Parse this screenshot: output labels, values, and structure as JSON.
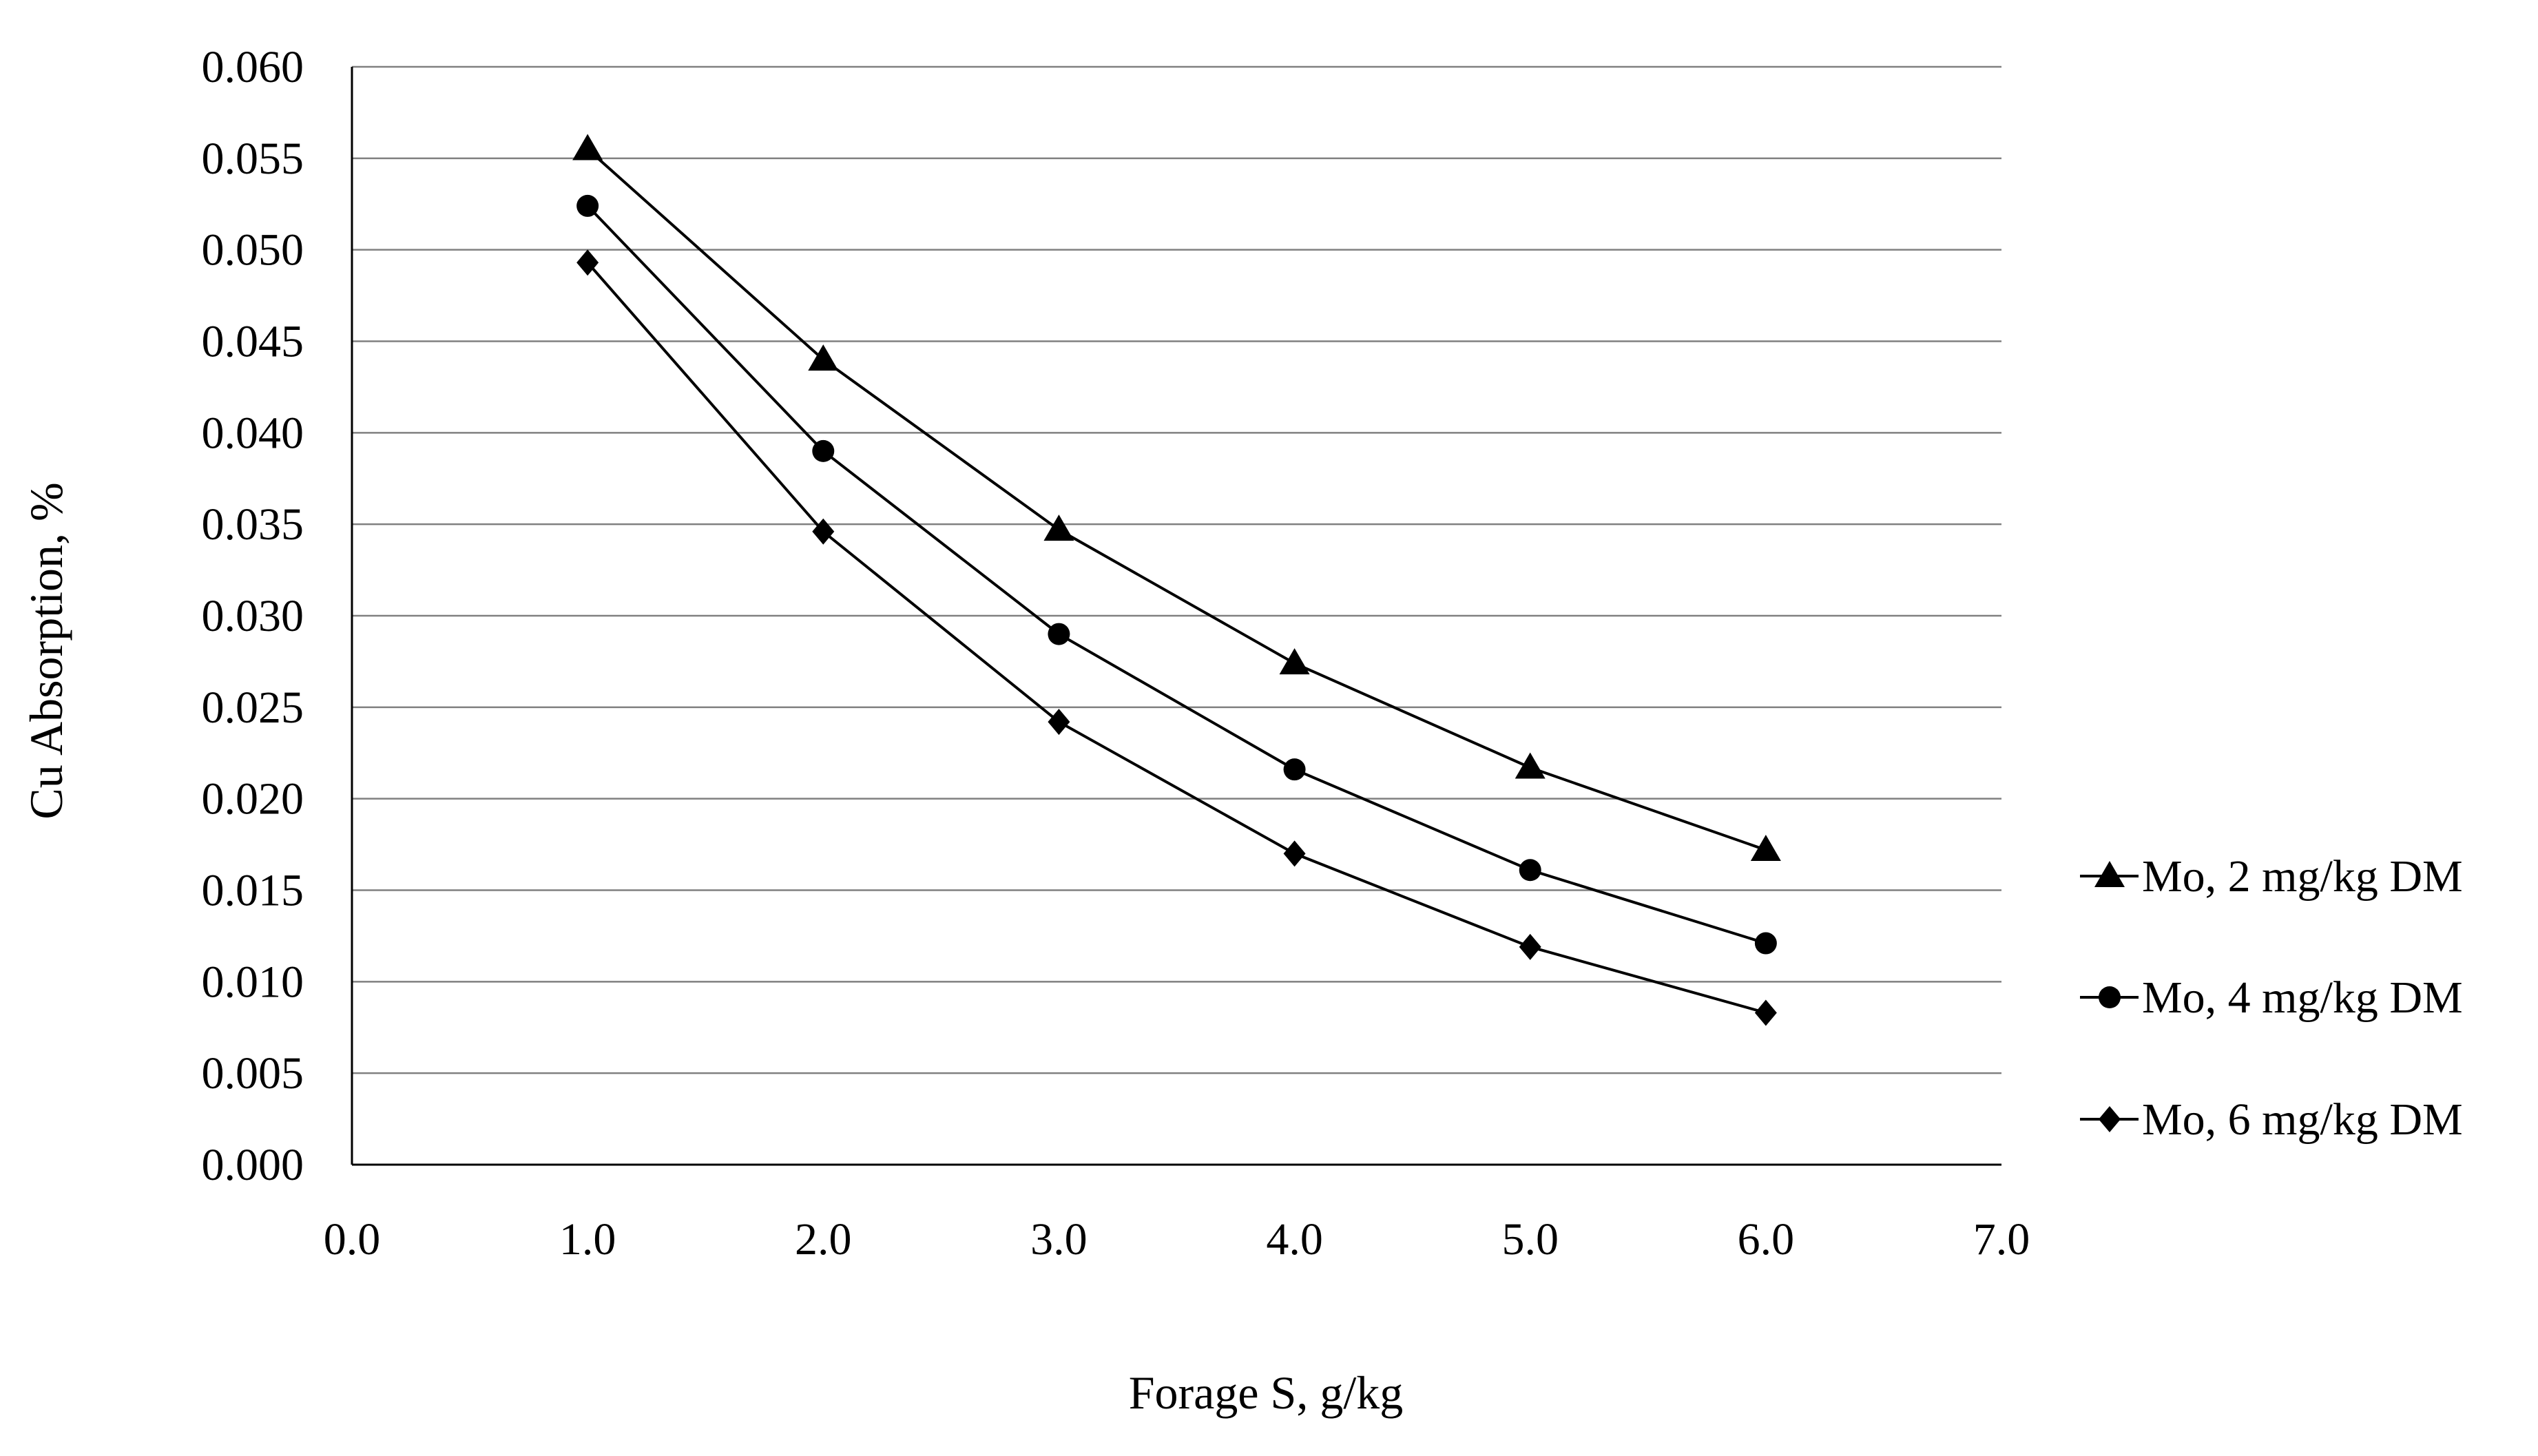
{
  "chart_data": {
    "type": "line",
    "title": "",
    "xlabel": "Forage S, g/kg",
    "ylabel": "Cu Absorption,  %",
    "xlim": [
      0,
      7
    ],
    "ylim": [
      0,
      0.06
    ],
    "x_ticks": [
      "0.0",
      "1.0",
      "2.0",
      "3.0",
      "4.0",
      "5.0",
      "6.0",
      "7.0"
    ],
    "y_ticks": [
      "0.000",
      "0.005",
      "0.010",
      "0.015",
      "0.020",
      "0.025",
      "0.030",
      "0.035",
      "0.040",
      "0.045",
      "0.050",
      "0.055",
      "0.060"
    ],
    "grid": "horizontal",
    "legend_position": "right",
    "x": [
      1,
      2,
      3,
      4,
      5,
      6
    ],
    "series": [
      {
        "name": "Mo, 2 mg/kg DM",
        "marker": "triangle",
        "color": "#000000",
        "values": [
          0.0555,
          0.044,
          0.0347,
          0.0274,
          0.0217,
          0.0172
        ]
      },
      {
        "name": "Mo, 4 mg/kg DM",
        "marker": "circle",
        "color": "#000000",
        "values": [
          0.0524,
          0.039,
          0.029,
          0.0216,
          0.0161,
          0.0121
        ]
      },
      {
        "name": "Mo, 6 mg/kg DM",
        "marker": "diamond",
        "color": "#000000",
        "values": [
          0.0493,
          0.0346,
          0.0242,
          0.017,
          0.0119,
          0.0083
        ]
      }
    ]
  }
}
